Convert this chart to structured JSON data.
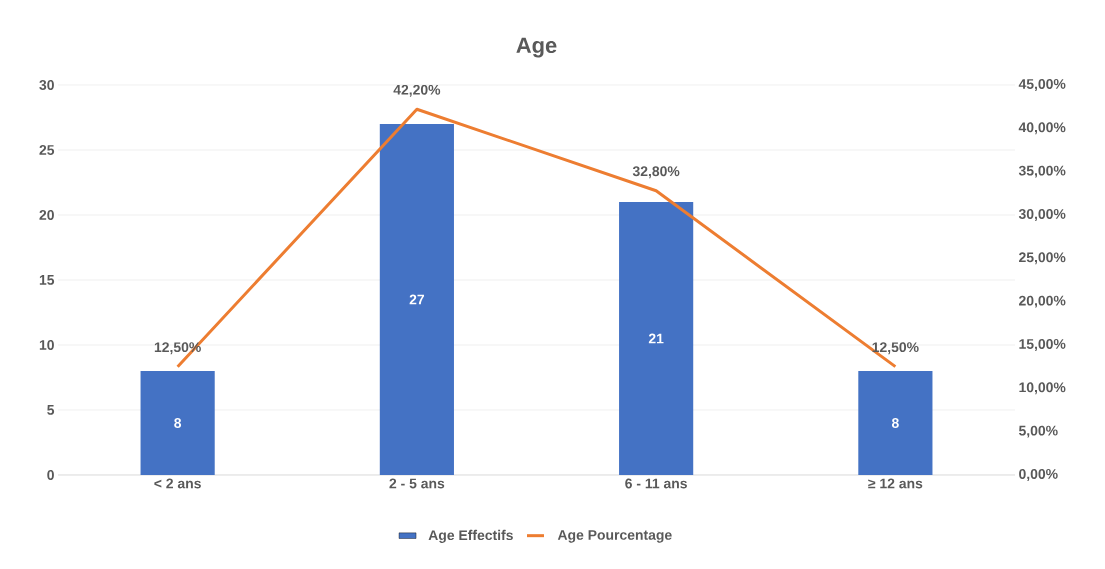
{
  "chart_data": {
    "type": "bar",
    "title": "Age",
    "categories": [
      "< 2 ans",
      "2 - 5 ans",
      "6 - 11 ans",
      "≥ 12 ans"
    ],
    "series": [
      {
        "name": "Age Effectifs",
        "color": "#4472c4",
        "values": [
          8,
          27,
          21,
          8
        ],
        "value_labels": [
          "8",
          "27",
          "21",
          "8"
        ]
      },
      {
        "name": "Age Pourcentage",
        "type": "line",
        "axis": "y2",
        "color": "#ed7d31",
        "values": [
          12.5,
          42.2,
          32.8,
          12.5
        ],
        "value_labels": [
          "12,50%",
          "42,20%",
          "32,80%",
          "12,50%"
        ]
      }
    ],
    "ylim": [
      0,
      30
    ],
    "yticks": [
      0,
      5,
      10,
      15,
      20,
      25,
      30
    ],
    "y2lim": [
      0,
      45
    ],
    "y2ticks": [
      {
        "value": 0,
        "label": "0,00%"
      },
      {
        "value": 5,
        "label": "5,00%"
      },
      {
        "value": 10,
        "label": "10,00%"
      },
      {
        "value": 15,
        "label": "15,00%"
      },
      {
        "value": 20,
        "label": "20,00%"
      },
      {
        "value": 25,
        "label": "25,00%"
      },
      {
        "value": 30,
        "label": "30,00%"
      },
      {
        "value": 35,
        "label": "35,00%"
      },
      {
        "value": 40,
        "label": "40,00%"
      },
      {
        "value": 45,
        "label": "45,00%"
      }
    ],
    "grid": "y",
    "legend": "bottom"
  }
}
